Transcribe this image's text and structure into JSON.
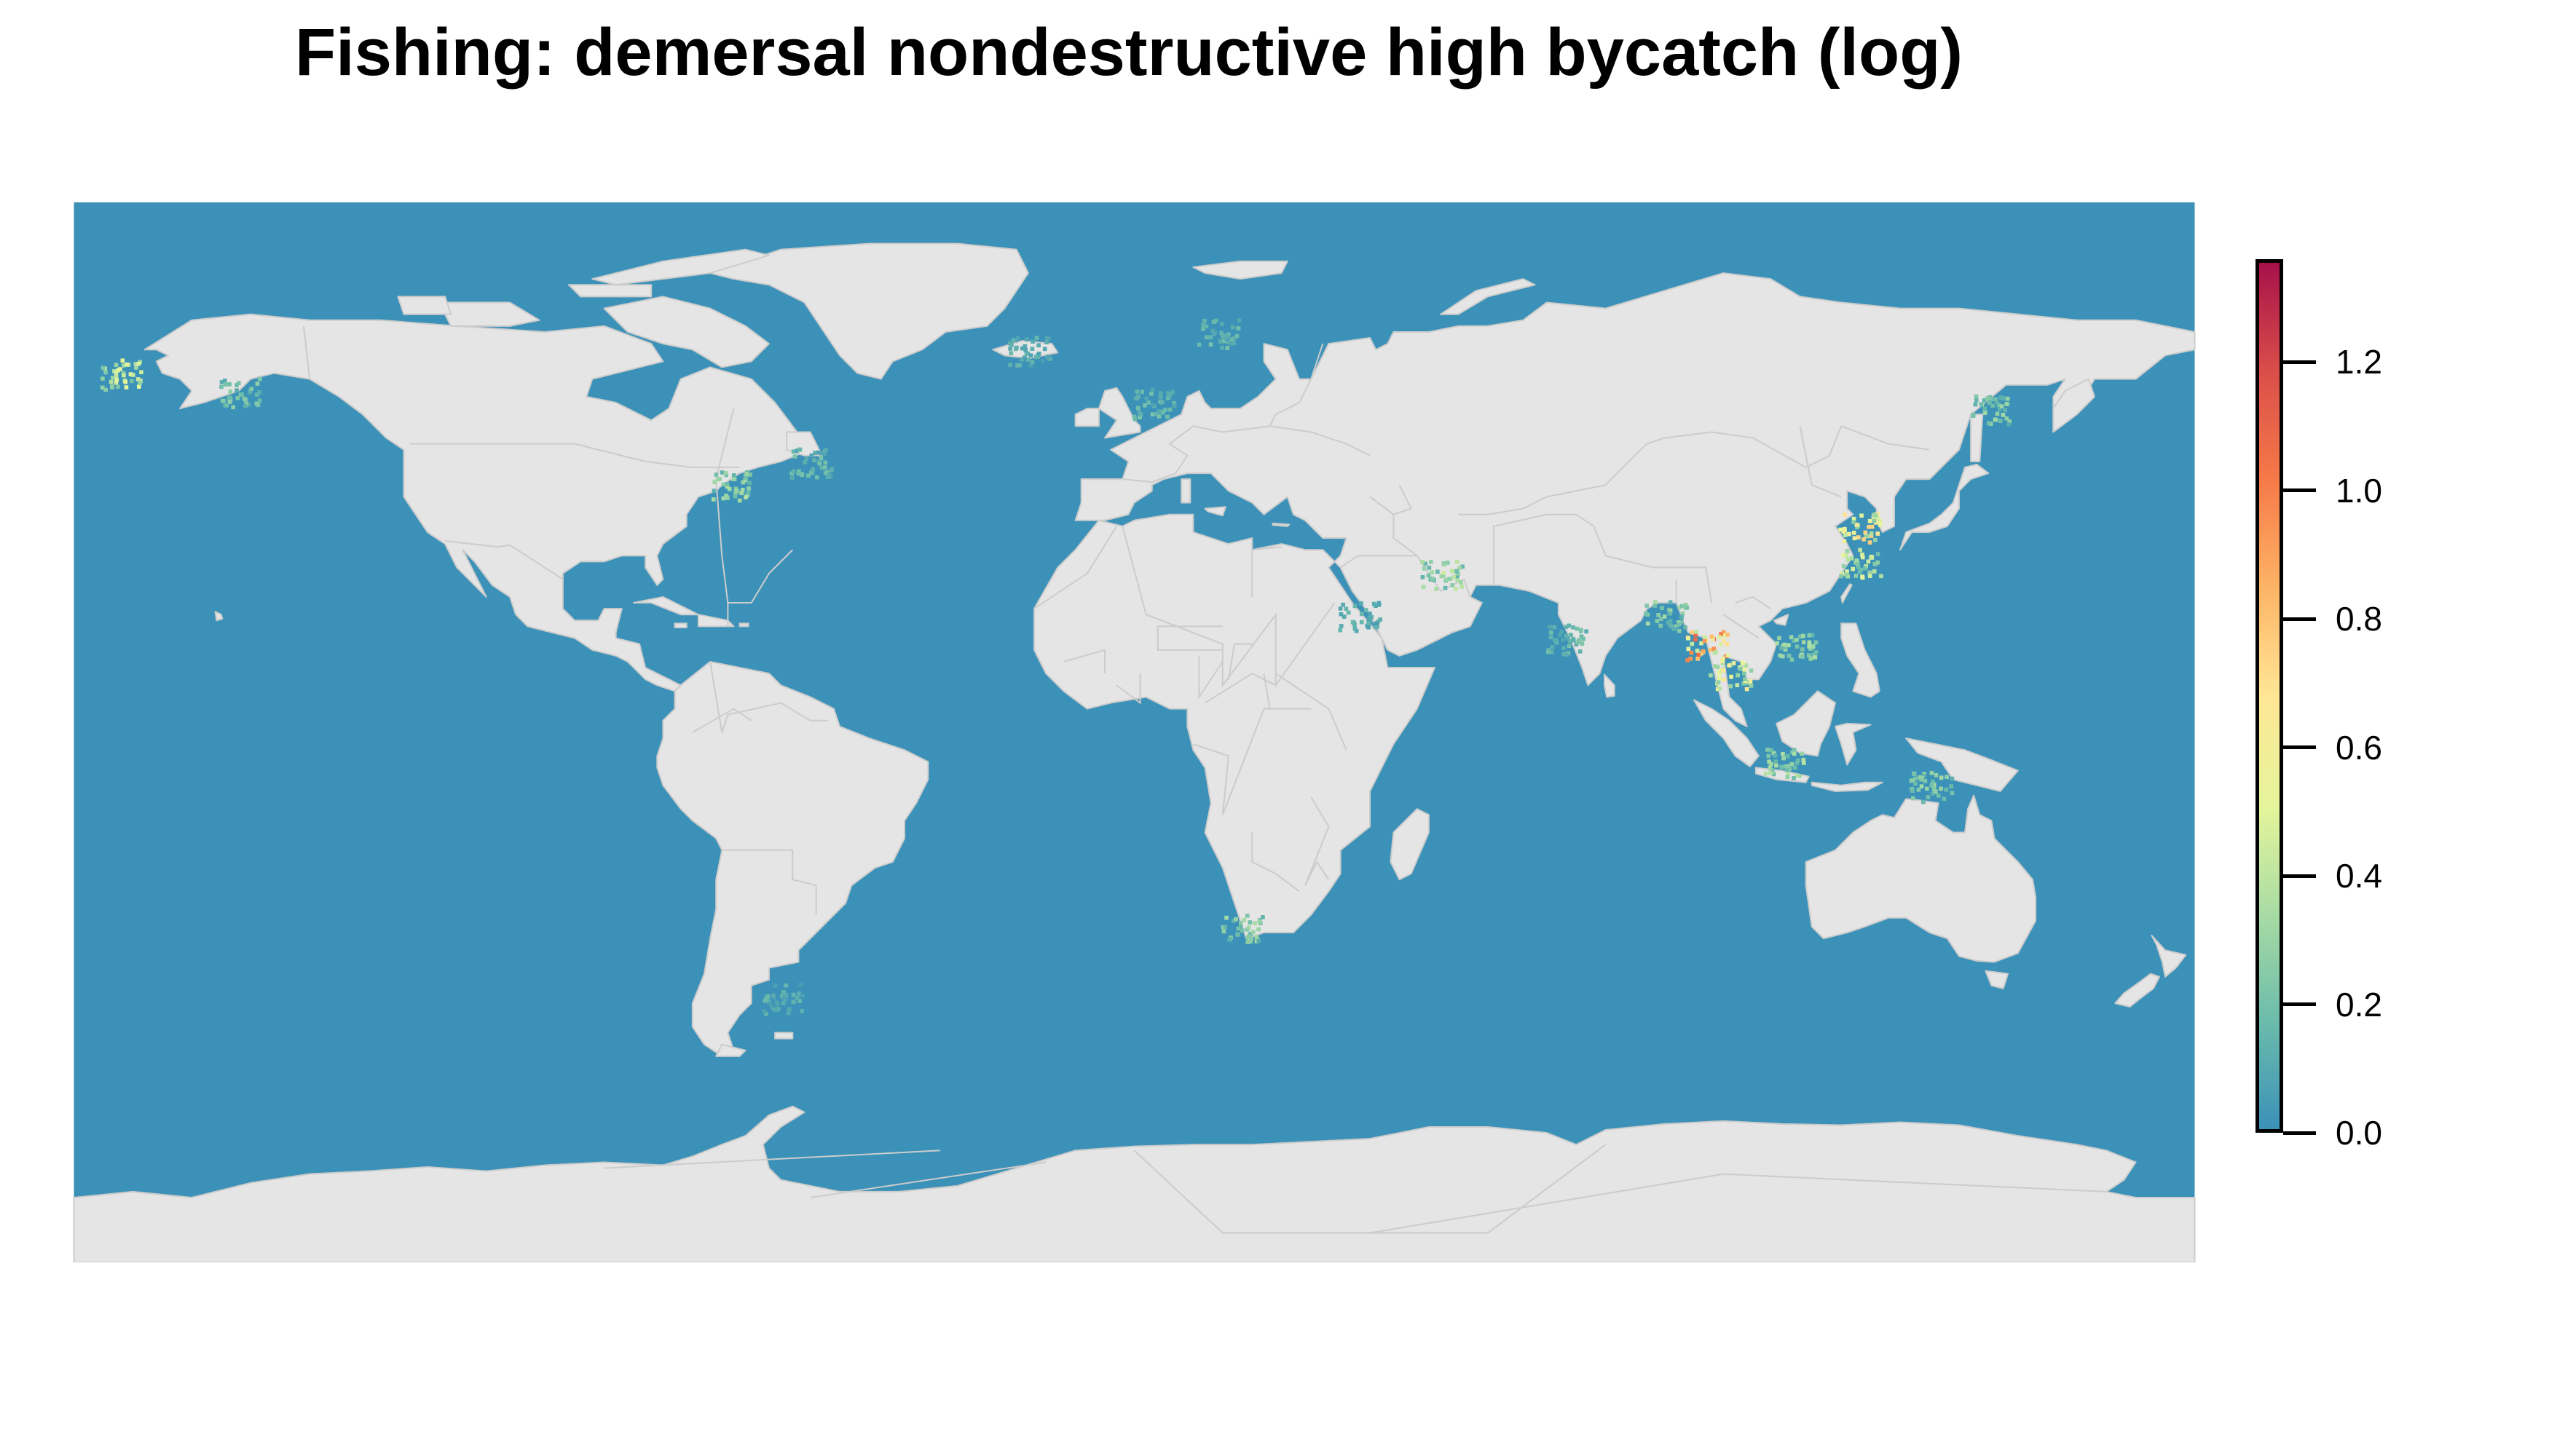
{
  "title": "Fishing: demersal nondestructive high bycatch (log)",
  "colors": {
    "ocean": "#3b91b8",
    "land": "#e5e5e5",
    "border": "#cccccc",
    "ice": "#ffffff"
  },
  "legend": {
    "min": 0.0,
    "max": 1.36,
    "palette": [
      "#3b91b8",
      "#6cbcab",
      "#a9dca4",
      "#e6f59b",
      "#fee695",
      "#fdb466",
      "#f67948",
      "#da4e4a",
      "#a7114a"
    ],
    "ticks": [
      {
        "value": 0.0,
        "label": "0.0"
      },
      {
        "value": 0.2,
        "label": "0.2"
      },
      {
        "value": 0.4,
        "label": "0.4"
      },
      {
        "value": 0.6,
        "label": "0.6"
      },
      {
        "value": 0.8,
        "label": "0.8"
      },
      {
        "value": 1.0,
        "label": "1.0"
      },
      {
        "value": 1.2,
        "label": "1.2"
      }
    ]
  },
  "hotspots": [
    {
      "region": "bering-sea-alaska",
      "lon": -172,
      "lat": 61,
      "value": 0.5
    },
    {
      "region": "gulf-of-alaska",
      "lon": -152,
      "lat": 58,
      "value": 0.25
    },
    {
      "region": "us-northeast-shelf",
      "lon": -69,
      "lat": 42,
      "value": 0.35
    },
    {
      "region": "newfoundland-shelf",
      "lon": -55,
      "lat": 46,
      "value": 0.2
    },
    {
      "region": "norwegian-coast",
      "lon": 14,
      "lat": 68,
      "value": 0.2
    },
    {
      "region": "north-sea",
      "lon": 3,
      "lat": 56,
      "value": 0.2
    },
    {
      "region": "iceland",
      "lon": -18,
      "lat": 65,
      "value": 0.15
    },
    {
      "region": "persian-gulf",
      "lon": 52,
      "lat": 27,
      "value": 0.4
    },
    {
      "region": "red-sea",
      "lon": 38,
      "lat": 20,
      "value": 0.15
    },
    {
      "region": "india-west-coast",
      "lon": 73,
      "lat": 16,
      "value": 0.2
    },
    {
      "region": "bay-of-bengal",
      "lon": 90,
      "lat": 20,
      "value": 0.3
    },
    {
      "region": "andaman-sea",
      "lon": 97,
      "lat": 15,
      "value": 1.0
    },
    {
      "region": "gulf-of-thailand",
      "lon": 101,
      "lat": 10,
      "value": 0.6
    },
    {
      "region": "south-china-sea",
      "lon": 112,
      "lat": 15,
      "value": 0.35
    },
    {
      "region": "yellow-sea",
      "lon": 123,
      "lat": 35,
      "value": 0.7
    },
    {
      "region": "east-china-sea",
      "lon": 123,
      "lat": 29,
      "value": 0.5
    },
    {
      "region": "sea-of-okhotsk",
      "lon": 145,
      "lat": 55,
      "value": 0.3
    },
    {
      "region": "java-sea",
      "lon": 110,
      "lat": -5,
      "value": 0.35
    },
    {
      "region": "arafura-sea",
      "lon": 135,
      "lat": -9,
      "value": 0.3
    },
    {
      "region": "benguela-south-africa",
      "lon": 18,
      "lat": -33,
      "value": 0.3
    },
    {
      "region": "patagonian-shelf",
      "lon": -60,
      "lat": -45,
      "value": 0.15
    }
  ]
}
